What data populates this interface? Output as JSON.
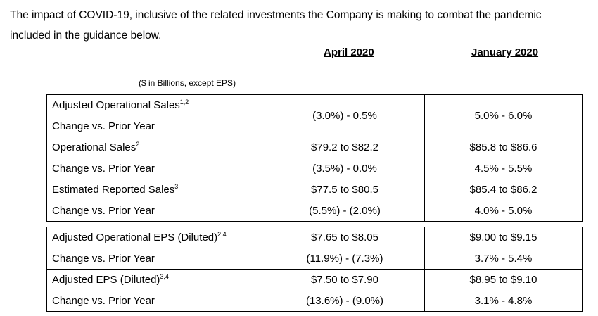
{
  "intro": {
    "line1": "The impact of COVID-19, inclusive of the related investments the Company is making to combat the pandemic",
    "line2": "included in the guidance below."
  },
  "columns": {
    "april": "April 2020",
    "january": "January 2020"
  },
  "units_note": "($ in Billions, except EPS)",
  "sales_table": {
    "rows": [
      {
        "label": "Adjusted Operational Sales",
        "sup": "1,2",
        "sublabel": "Change vs. Prior Year",
        "april_change": "(3.0%) - 0.5%",
        "january_change": "5.0% - 6.0%"
      },
      {
        "label": "Operational Sales",
        "sup": "2",
        "sublabel": "Change vs. Prior Year",
        "april_value": "$79.2 to $82.2",
        "april_change": "(3.5%) - 0.0%",
        "january_value": "$85.8 to $86.6",
        "january_change": "4.5% - 5.5%"
      },
      {
        "label": "Estimated Reported Sales",
        "sup": "3",
        "sublabel": "Change vs. Prior Year",
        "april_value": "$77.5 to $80.5",
        "april_change": "(5.5%) - (2.0%)",
        "january_value": "$85.4 to $86.2",
        "january_change": "4.0% - 5.0%"
      }
    ]
  },
  "eps_table": {
    "rows": [
      {
        "label": "Adjusted Operational EPS (Diluted)",
        "sup": "2,4",
        "sublabel": "Change vs. Prior Year",
        "april_value": "$7.65 to $8.05",
        "april_change": "(11.9%) - (7.3%)",
        "january_value": "$9.00 to $9.15",
        "january_change": "3.7% - 5.4%"
      },
      {
        "label": "Adjusted EPS (Diluted)",
        "sup": "3,4",
        "sublabel": "Change vs. Prior Year",
        "april_value": "$7.50 to $7.90",
        "april_change": "(13.6%) - (9.0%)",
        "january_value": "$8.95 to $9.10",
        "january_change": "3.1% - 4.8%"
      }
    ]
  }
}
